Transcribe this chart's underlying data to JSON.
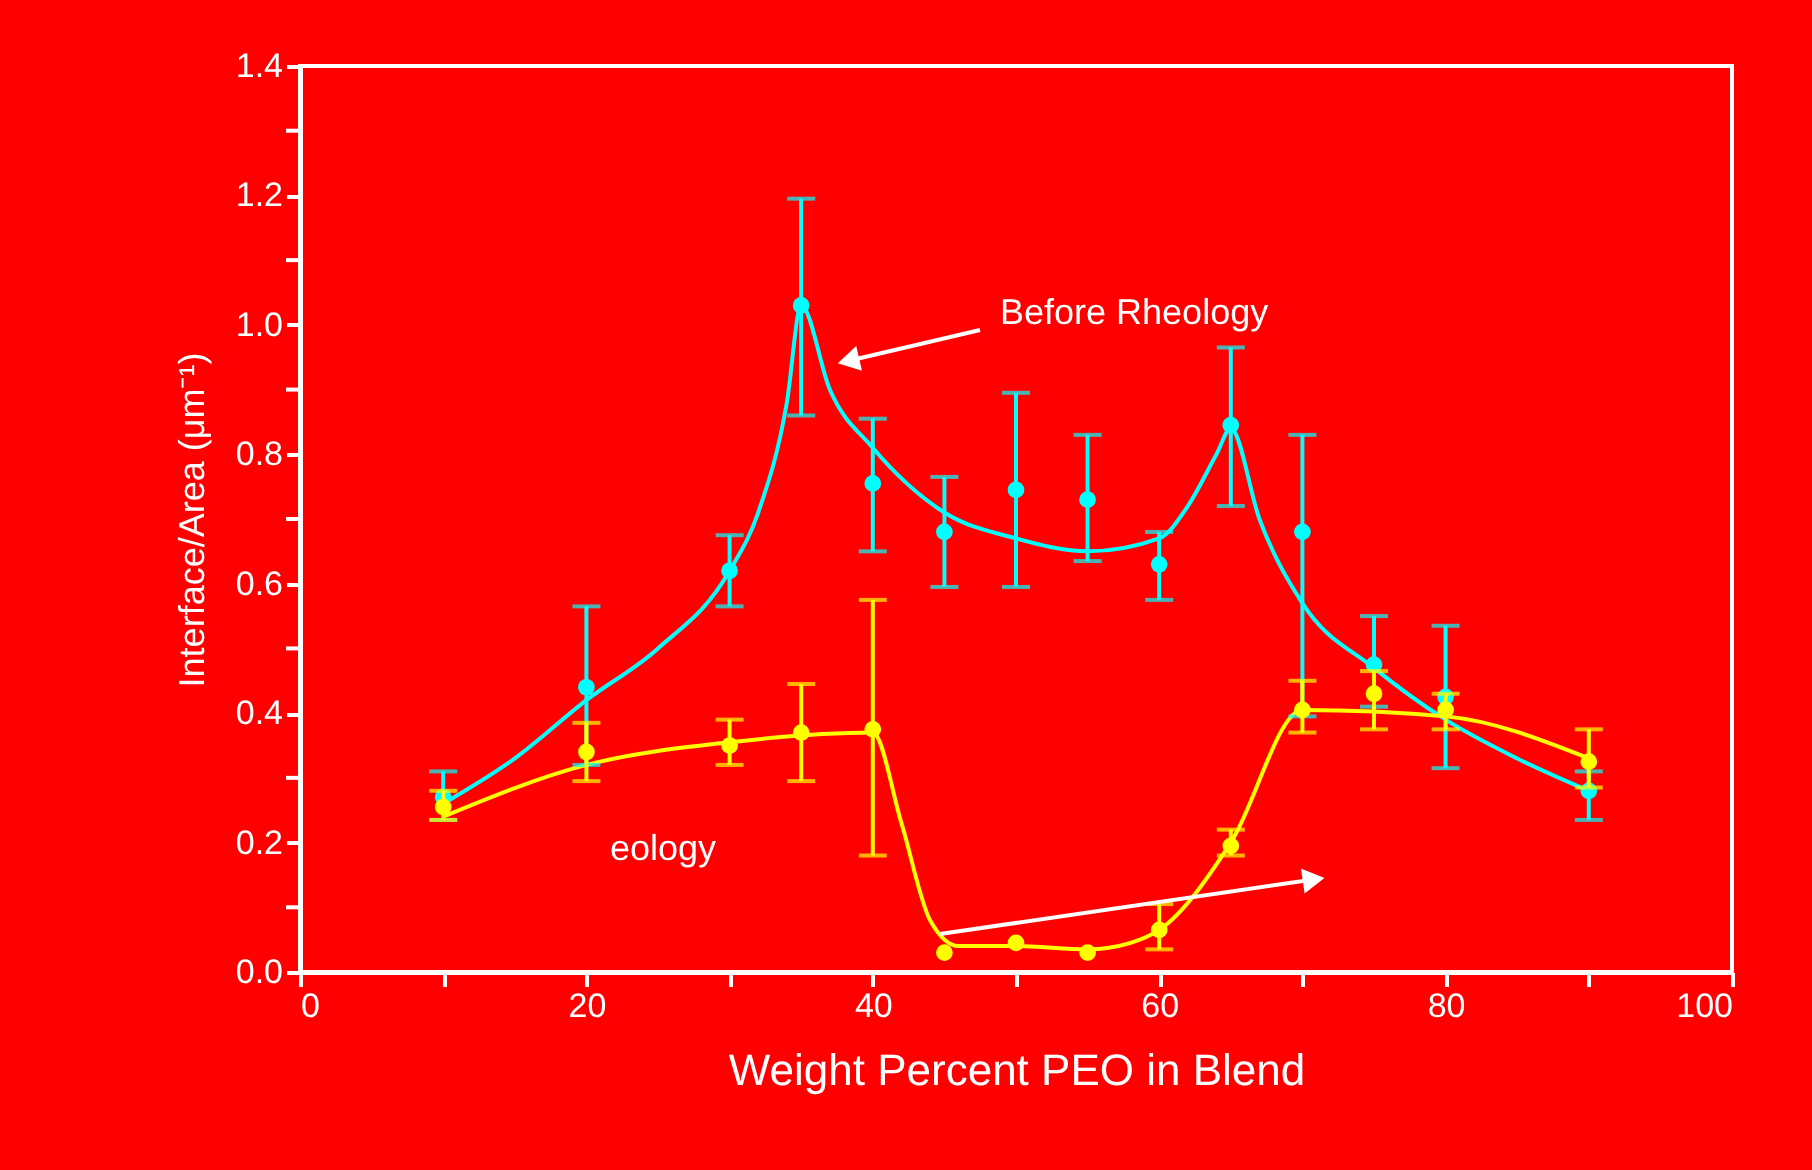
{
  "chart_data": {
    "type": "scatter",
    "xlabel": "Weight Percent PEO in Blend",
    "ylabel": "Interface/Area (μm⁻¹)",
    "xlim": [
      0,
      100
    ],
    "ylim": [
      0,
      1.4
    ],
    "xticks": [
      0,
      {
        "value": 10,
        "label": null
      },
      20,
      {
        "value": 30,
        "label": null
      },
      40,
      {
        "value": 50,
        "label": null
      },
      60,
      {
        "value": 70,
        "label": null
      },
      80,
      {
        "value": 90,
        "label": null
      },
      100
    ],
    "yticks": [
      {
        "value": 0,
        "label": "0.0"
      },
      {
        "value": 0.1,
        "label": null
      },
      0.2,
      {
        "value": 0.3,
        "label": null
      },
      0.4,
      {
        "value": 0.5,
        "label": null
      },
      0.6,
      {
        "value": 0.7,
        "label": null
      },
      0.8,
      {
        "value": 0.9,
        "label": null
      },
      {
        "value": 1,
        "label": "1.0"
      },
      {
        "value": 1.1,
        "label": null
      },
      1.2,
      {
        "value": 1.3,
        "label": null
      },
      1.4
    ],
    "grid": false,
    "marker": "circle",
    "series": [
      {
        "color": "#00ffff",
        "x": [
          10,
          20,
          30,
          35,
          40,
          45,
          50,
          55,
          60,
          65,
          70,
          75,
          80,
          90
        ],
        "values": [
          0.27,
          0.44,
          0.62,
          1.03,
          0.755,
          0.68,
          0.745,
          0.73,
          0.63,
          0.845,
          0.68,
          0.475,
          0.425,
          0.28
        ],
        "errors": [
          [
            0.235,
            0.31
          ],
          [
            0.32,
            0.565
          ],
          [
            0.565,
            0.675
          ],
          [
            0.86,
            1.195
          ],
          [
            0.65,
            0.855
          ],
          [
            0.595,
            0.765
          ],
          [
            0.595,
            0.895
          ],
          [
            0.635,
            0.83
          ],
          [
            0.575,
            0.68
          ],
          [
            0.72,
            0.965
          ],
          [
            0.395,
            0.83
          ],
          [
            0.41,
            0.55
          ],
          [
            0.315,
            0.535
          ],
          [
            0.235,
            0.31
          ]
        ]
      },
      {
        "color": "#ffff00",
        "x": [
          10,
          20,
          30,
          35,
          40,
          45,
          50,
          55,
          60,
          65,
          70,
          75,
          80,
          90
        ],
        "values": [
          0.255,
          0.34,
          0.35,
          0.37,
          0.375,
          0.03,
          0.045,
          0.03,
          0.065,
          0.195,
          0.405,
          0.43,
          0.405,
          0.325
        ],
        "errors": [
          [
            0.235,
            0.28
          ],
          [
            0.295,
            0.385
          ],
          [
            0.32,
            0.39
          ],
          [
            0.295,
            0.445
          ],
          [
            0.18,
            0.575
          ],
          null,
          null,
          null,
          [
            0.035,
            0.105
          ],
          [
            0.18,
            0.22
          ],
          [
            0.37,
            0.45
          ],
          [
            0.375,
            0.465
          ],
          [
            0.375,
            0.43
          ],
          [
            0.285,
            0.375
          ]
        ]
      },
      {
        "type": "line",
        "color": "#00ffff",
        "marker": "none",
        "x": [
          10,
          15,
          20,
          25,
          30,
          32,
          34,
          35,
          37,
          40,
          45,
          50,
          55,
          60,
          62,
          64,
          65,
          67,
          70,
          75,
          80,
          85,
          90
        ],
        "values": [
          0.26,
          0.33,
          0.42,
          0.5,
          0.62,
          0.71,
          0.88,
          1.03,
          0.9,
          0.81,
          0.71,
          0.67,
          0.65,
          0.67,
          0.72,
          0.8,
          0.84,
          0.7,
          0.57,
          0.47,
          0.39,
          0.33,
          0.28
        ]
      },
      {
        "type": "line",
        "color": "#ffff00",
        "marker": "none",
        "x": [
          10,
          20,
          30,
          40,
          42,
          44,
          46,
          50,
          55,
          58,
          60,
          65,
          70,
          80,
          90
        ],
        "values": [
          0.24,
          0.32,
          0.355,
          0.37,
          0.23,
          0.08,
          0.04,
          0.04,
          0.035,
          0.045,
          0.065,
          0.2,
          0.405,
          0.395,
          0.33
        ]
      }
    ],
    "annotations": [
      "Before Rheology",
      "eology"
    ]
  }
}
